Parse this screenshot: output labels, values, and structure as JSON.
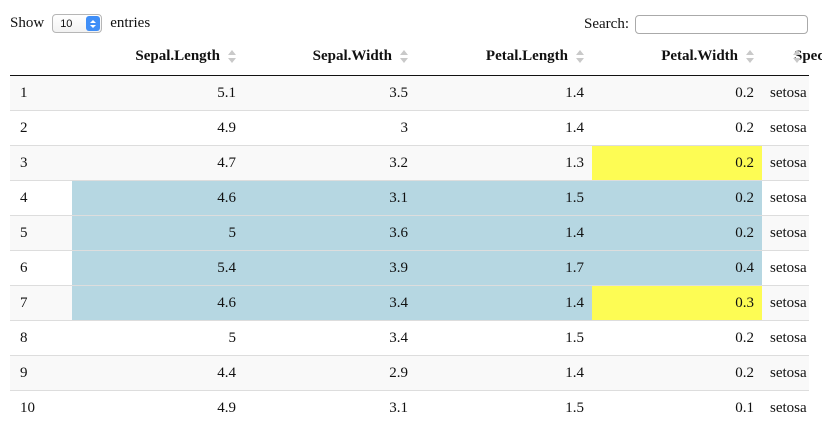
{
  "controls": {
    "show_label": "Show",
    "page_size": "10",
    "entries_label": "entries",
    "search_label": "Search:",
    "search_value": ""
  },
  "columns": [
    "",
    "Sepal.Length",
    "Sepal.Width",
    "Petal.Length",
    "Petal.Width",
    "Species"
  ],
  "rows": [
    {
      "id": "1",
      "sepal_length": "5.1",
      "sepal_width": "3.5",
      "petal_length": "1.4",
      "petal_width": "0.2",
      "species": "setosa"
    },
    {
      "id": "2",
      "sepal_length": "4.9",
      "sepal_width": "3",
      "petal_length": "1.4",
      "petal_width": "0.2",
      "species": "setosa"
    },
    {
      "id": "3",
      "sepal_length": "4.7",
      "sepal_width": "3.2",
      "petal_length": "1.3",
      "petal_width": "0.2",
      "species": "setosa"
    },
    {
      "id": "4",
      "sepal_length": "4.6",
      "sepal_width": "3.1",
      "petal_length": "1.5",
      "petal_width": "0.2",
      "species": "setosa"
    },
    {
      "id": "5",
      "sepal_length": "5",
      "sepal_width": "3.6",
      "petal_length": "1.4",
      "petal_width": "0.2",
      "species": "setosa"
    },
    {
      "id": "6",
      "sepal_length": "5.4",
      "sepal_width": "3.9",
      "petal_length": "1.7",
      "petal_width": "0.4",
      "species": "setosa"
    },
    {
      "id": "7",
      "sepal_length": "4.6",
      "sepal_width": "3.4",
      "petal_length": "1.4",
      "petal_width": "0.3",
      "species": "setosa"
    },
    {
      "id": "8",
      "sepal_length": "5",
      "sepal_width": "3.4",
      "petal_length": "1.5",
      "petal_width": "0.2",
      "species": "setosa"
    },
    {
      "id": "9",
      "sepal_length": "4.4",
      "sepal_width": "2.9",
      "petal_length": "1.4",
      "petal_width": "0.2",
      "species": "setosa"
    },
    {
      "id": "10",
      "sepal_length": "4.9",
      "sepal_width": "3.1",
      "petal_length": "1.5",
      "petal_width": "0.1",
      "species": "setosa"
    }
  ],
  "highlight_colors": {
    "blue": "#b6d7e2",
    "yellow": "#fdfc54"
  }
}
